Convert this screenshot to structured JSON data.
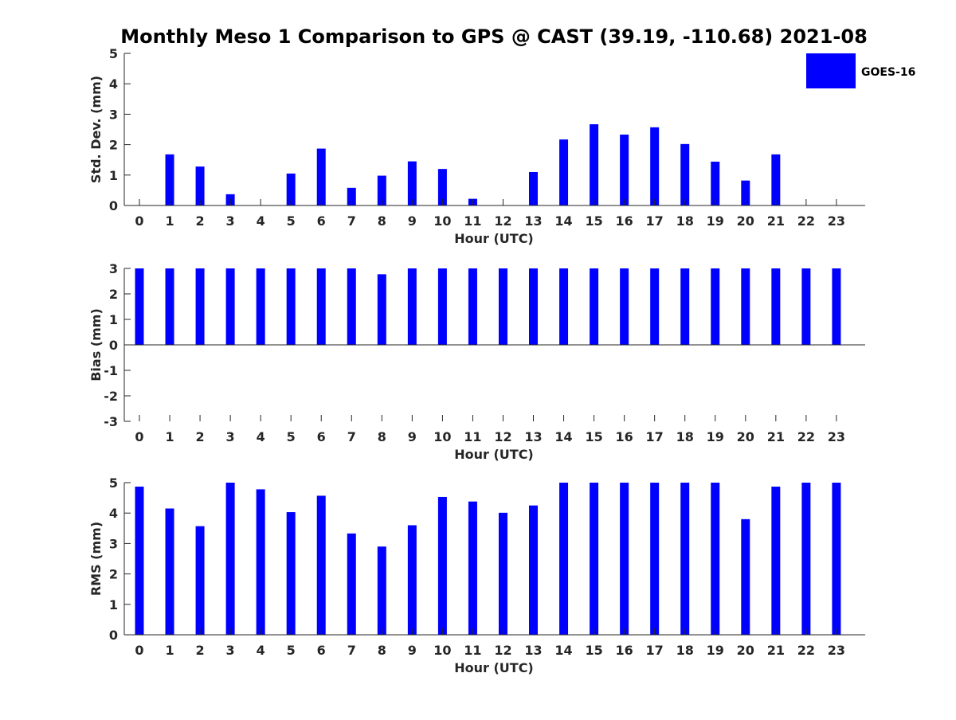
{
  "title": "Monthly Meso 1 Comparison to GPS @ CAST (39.19, -110.68) 2021-08",
  "legend": {
    "label": "GOES-16",
    "position": "top-right"
  },
  "colors": {
    "bar": "#0000ff",
    "axis": "#262626",
    "title": "#000000"
  },
  "chart_data": [
    {
      "type": "bar",
      "xlabel": "Hour (UTC)",
      "ylabel": "Std. Dev. (mm)",
      "ylim": [
        0,
        5
      ],
      "yticks": [
        0,
        1,
        2,
        3,
        4,
        5
      ],
      "grid": false,
      "categories": [
        "0",
        "1",
        "2",
        "3",
        "4",
        "5",
        "6",
        "7",
        "8",
        "9",
        "10",
        "11",
        "12",
        "13",
        "14",
        "15",
        "16",
        "17",
        "18",
        "19",
        "20",
        "21",
        "22",
        "23"
      ],
      "series": [
        {
          "name": "GOES-16",
          "values": [
            0,
            1.68,
            1.28,
            0.37,
            0,
            1.05,
            1.87,
            0.58,
            0.98,
            1.45,
            1.2,
            0.22,
            0,
            1.1,
            2.17,
            2.67,
            2.33,
            2.57,
            2.02,
            1.44,
            0.82,
            1.68,
            0,
            0
          ]
        }
      ]
    },
    {
      "type": "bar",
      "xlabel": "Hour (UTC)",
      "ylabel": "Bias (mm)",
      "ylim": [
        -3,
        3
      ],
      "yticks": [
        -3,
        -2,
        -1,
        0,
        1,
        2,
        3
      ],
      "grid": false,
      "categories": [
        "0",
        "1",
        "2",
        "3",
        "4",
        "5",
        "6",
        "7",
        "8",
        "9",
        "10",
        "11",
        "12",
        "13",
        "14",
        "15",
        "16",
        "17",
        "18",
        "19",
        "20",
        "21",
        "22",
        "23"
      ],
      "series": [
        {
          "name": "GOES-16",
          "values": [
            3,
            3,
            3,
            3,
            3,
            3,
            3,
            3,
            2.77,
            3,
            3,
            3,
            3,
            3,
            3,
            3,
            3,
            3,
            3,
            3,
            3,
            3,
            3,
            3
          ]
        }
      ]
    },
    {
      "type": "bar",
      "xlabel": "Hour (UTC)",
      "ylabel": "RMS (mm)",
      "ylim": [
        0,
        5
      ],
      "yticks": [
        0,
        1,
        2,
        3,
        4,
        5
      ],
      "grid": false,
      "categories": [
        "0",
        "1",
        "2",
        "3",
        "4",
        "5",
        "6",
        "7",
        "8",
        "9",
        "10",
        "11",
        "12",
        "13",
        "14",
        "15",
        "16",
        "17",
        "18",
        "19",
        "20",
        "21",
        "22",
        "23"
      ],
      "series": [
        {
          "name": "GOES-16",
          "values": [
            4.87,
            4.15,
            3.57,
            5,
            4.78,
            4.03,
            4.57,
            3.33,
            2.9,
            3.6,
            4.53,
            4.38,
            4.01,
            4.25,
            5,
            5,
            5,
            5,
            5,
            5,
            3.8,
            4.87,
            5,
            5
          ]
        }
      ]
    }
  ]
}
